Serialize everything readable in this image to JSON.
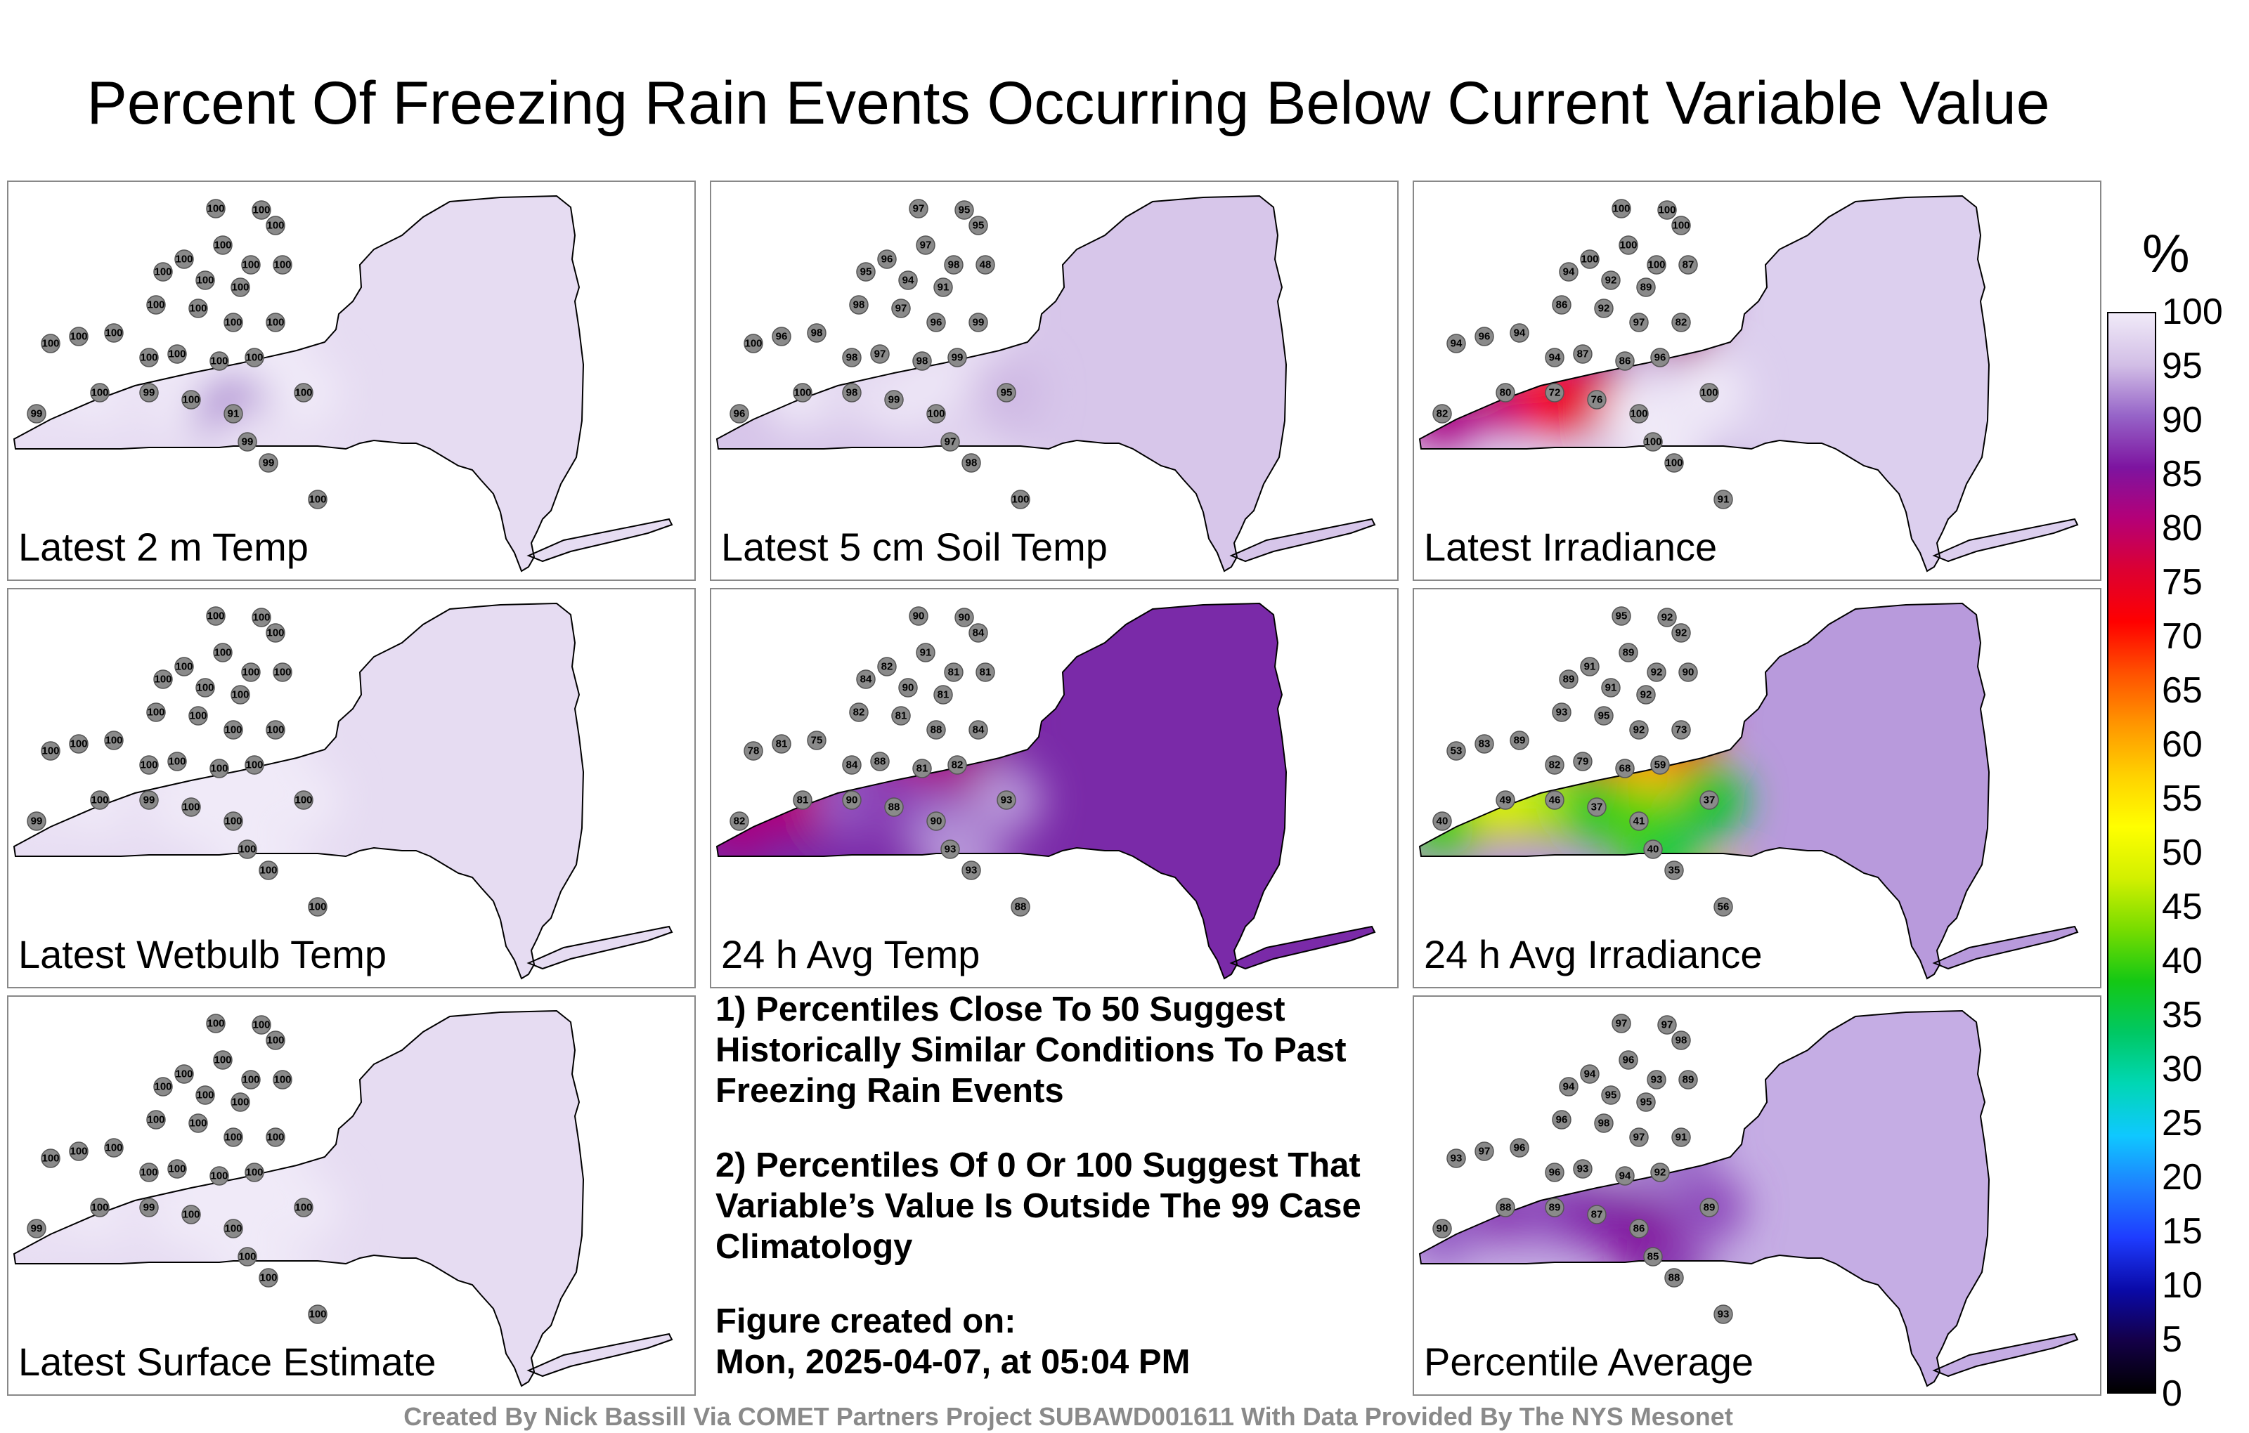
{
  "title": "Percent Of Freezing Rain Events Occurring Below Current Variable Value",
  "colorbar": {
    "unit": "%",
    "min": 0,
    "max": 100,
    "ticks": [
      "0",
      "5",
      "10",
      "15",
      "20",
      "25",
      "30",
      "35",
      "40",
      "45",
      "50",
      "55",
      "60",
      "65",
      "70",
      "75",
      "80",
      "85",
      "90",
      "95",
      "100"
    ],
    "colors": [
      "#000000",
      "#140048",
      "#0a0aa8",
      "#1e3cff",
      "#1e7fff",
      "#0fc8ff",
      "#00d7b4",
      "#00c864",
      "#14c814",
      "#78dc00",
      "#d2f000",
      "#ffff00",
      "#ffd200",
      "#ff9600",
      "#ff5000",
      "#ff0000",
      "#dc0032",
      "#b40078",
      "#7d14a0",
      "#9664c8",
      "#d2bee6",
      "#f0eaf8"
    ]
  },
  "panels": [
    {
      "id": "2m-temp",
      "label": "Latest 2 m Temp",
      "fill_base": "#e6dcf2",
      "values": [
        100,
        100,
        100,
        100,
        100,
        100,
        100,
        100,
        100,
        100,
        100,
        100,
        100,
        100,
        100,
        100,
        100,
        100,
        100,
        100,
        100,
        99,
        100,
        99,
        100,
        91,
        99,
        99,
        100,
        100
      ]
    },
    {
      "id": "soil-temp",
      "label": "Latest 5 cm Soil Temp",
      "fill_base": "#d7c6ea",
      "values": [
        97,
        95,
        95,
        97,
        96,
        98,
        48,
        95,
        94,
        91,
        98,
        97,
        96,
        98,
        96,
        98,
        97,
        98,
        99,
        99,
        100,
        96,
        100,
        98,
        99,
        100,
        97,
        98,
        95,
        100
      ]
    },
    {
      "id": "irradiance",
      "label": "Latest Irradiance",
      "fill_base": "#dccfee",
      "values": [
        100,
        100,
        100,
        100,
        100,
        100,
        87,
        94,
        92,
        89,
        86,
        92,
        97,
        94,
        96,
        94,
        87,
        86,
        96,
        82,
        94,
        82,
        80,
        72,
        76,
        100,
        100,
        100,
        100,
        91
      ]
    },
    {
      "id": "wetbulb",
      "label": "Latest Wetbulb Temp",
      "fill_base": "#e6dcf2",
      "values": [
        100,
        100,
        100,
        100,
        100,
        100,
        100,
        100,
        100,
        100,
        100,
        100,
        100,
        100,
        100,
        100,
        100,
        100,
        100,
        100,
        100,
        99,
        100,
        99,
        100,
        100,
        100,
        100,
        100,
        100
      ]
    },
    {
      "id": "24h-temp",
      "label": "24 h Avg Temp",
      "fill_base": "#7a2aa8",
      "values": [
        90,
        90,
        84,
        91,
        82,
        81,
        81,
        84,
        90,
        81,
        82,
        81,
        88,
        75,
        81,
        84,
        88,
        81,
        82,
        84,
        78,
        82,
        81,
        90,
        88,
        90,
        93,
        93,
        93,
        88
      ]
    },
    {
      "id": "24h-irr",
      "label": "24 h Avg Irradiance",
      "fill_base": "#b89adc",
      "values": [
        95,
        92,
        92,
        89,
        91,
        92,
        90,
        89,
        91,
        92,
        93,
        95,
        92,
        89,
        83,
        82,
        79,
        68,
        59,
        73,
        53,
        40,
        49,
        46,
        37,
        41,
        40,
        35,
        37,
        56
      ]
    },
    {
      "id": "surface",
      "label": "Latest Surface Estimate",
      "fill_base": "#e6dcf2",
      "values": [
        100,
        100,
        100,
        100,
        100,
        100,
        100,
        100,
        100,
        100,
        100,
        100,
        100,
        100,
        100,
        100,
        100,
        100,
        100,
        100,
        100,
        99,
        100,
        99,
        100,
        100,
        100,
        100,
        100,
        100
      ]
    },
    {
      "id": "average",
      "label": "Percentile Average",
      "fill_base": "#c5ade4",
      "values": [
        97,
        97,
        98,
        96,
        94,
        93,
        89,
        94,
        95,
        95,
        96,
        98,
        97,
        96,
        97,
        96,
        93,
        94,
        92,
        91,
        93,
        90,
        88,
        89,
        87,
        86,
        85,
        88,
        89,
        93
      ]
    }
  ],
  "notes": {
    "note1": "1) Percentiles Close To 50 Suggest Historically Similar Conditions To Past Freezing Rain Events",
    "note2": "2) Percentiles Of 0 Or 100 Suggest That Variable’s Value Is Outside The 99 Case Climatology",
    "created_label": "Figure created on:",
    "created_value": "Mon, 2025-04-07, at 05:04 PM"
  },
  "credit": "Created By Nick Bassill Via COMET Partners Project SUBAWD001611 With Data Provided By The NYS Mesonet"
}
